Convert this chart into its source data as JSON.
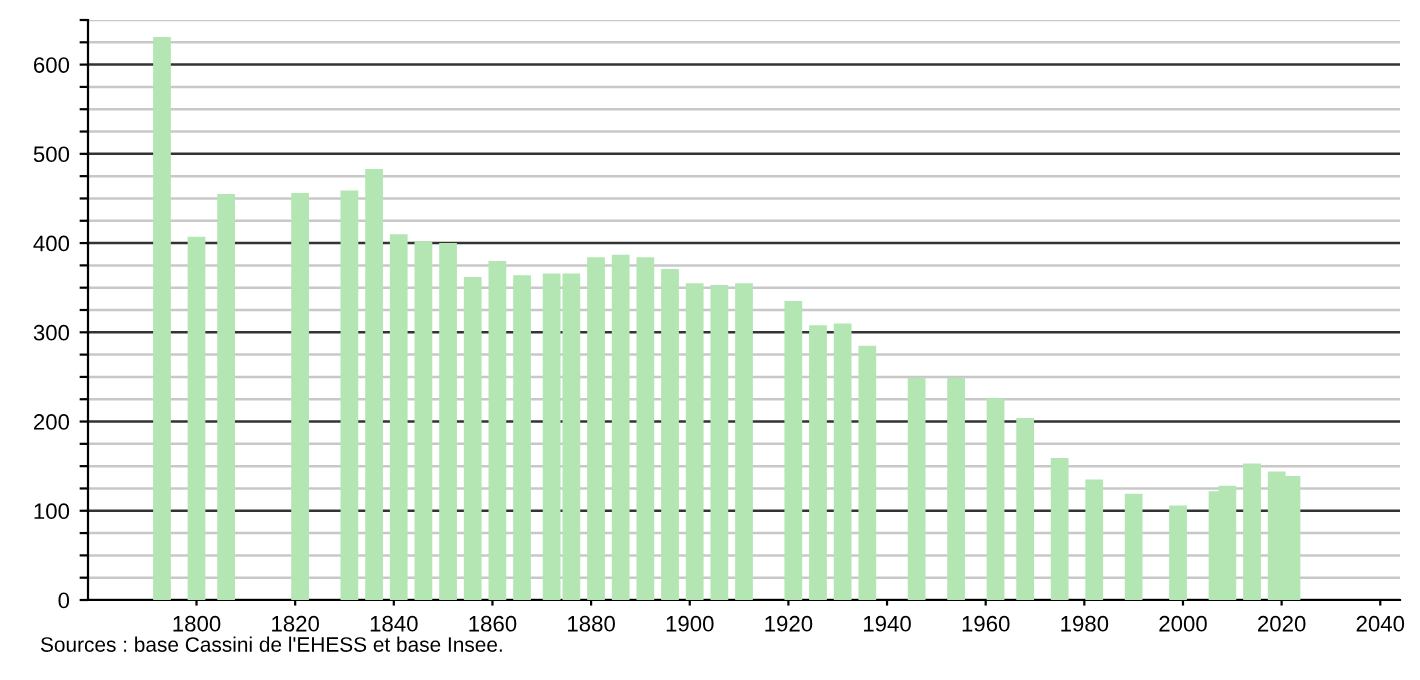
{
  "chart_data": {
    "type": "bar",
    "x": [
      1793,
      1800,
      1806,
      1821,
      1831,
      1836,
      1841,
      1846,
      1851,
      1856,
      1861,
      1866,
      1872,
      1876,
      1881,
      1886,
      1891,
      1896,
      1901,
      1906,
      1911,
      1921,
      1926,
      1931,
      1936,
      1946,
      1954,
      1962,
      1968,
      1975,
      1982,
      1990,
      1999,
      2007,
      2009,
      2014,
      2019,
      2022
    ],
    "values": [
      631,
      407,
      455,
      456,
      459,
      483,
      410,
      402,
      400,
      362,
      380,
      364,
      366,
      366,
      384,
      387,
      384,
      371,
      355,
      353,
      355,
      335,
      308,
      310,
      285,
      249,
      249,
      226,
      204,
      159,
      135,
      119,
      106,
      122,
      128,
      153,
      144,
      139
    ],
    "color": "#b3e6b3",
    "xlim": [
      1778,
      2044
    ],
    "xticks": [
      1800,
      1820,
      1840,
      1860,
      1880,
      1900,
      1920,
      1940,
      1960,
      1980,
      2000,
      2020,
      2040
    ],
    "ylim": [
      0,
      650
    ],
    "yticks": [
      0,
      {
        "value": 25,
        "label": null
      },
      100,
      {
        "value": 50,
        "label": null
      },
      {
        "value": 75,
        "label": null
      },
      {
        "value": 125,
        "label": null
      },
      {
        "value": 150,
        "label": null
      },
      {
        "value": 175,
        "label": null
      },
      200,
      {
        "value": 225,
        "label": null
      },
      {
        "value": 250,
        "label": null
      },
      {
        "value": 275,
        "label": null
      },
      300,
      {
        "value": 325,
        "label": null
      },
      {
        "value": 350,
        "label": null
      },
      {
        "value": 375,
        "label": null
      },
      400,
      {
        "value": 425,
        "label": null
      },
      {
        "value": 450,
        "label": null
      },
      {
        "value": 475,
        "label": null
      },
      500,
      {
        "value": 525,
        "label": null
      },
      {
        "value": 550,
        "label": null
      },
      {
        "value": 575,
        "label": null
      },
      600,
      {
        "value": 625,
        "label": null
      },
      {
        "value": 650,
        "label": null
      }
    ],
    "grid": "y",
    "annotations": [
      "Sources : base Cassini de l'EHESS et base Insee."
    ]
  }
}
